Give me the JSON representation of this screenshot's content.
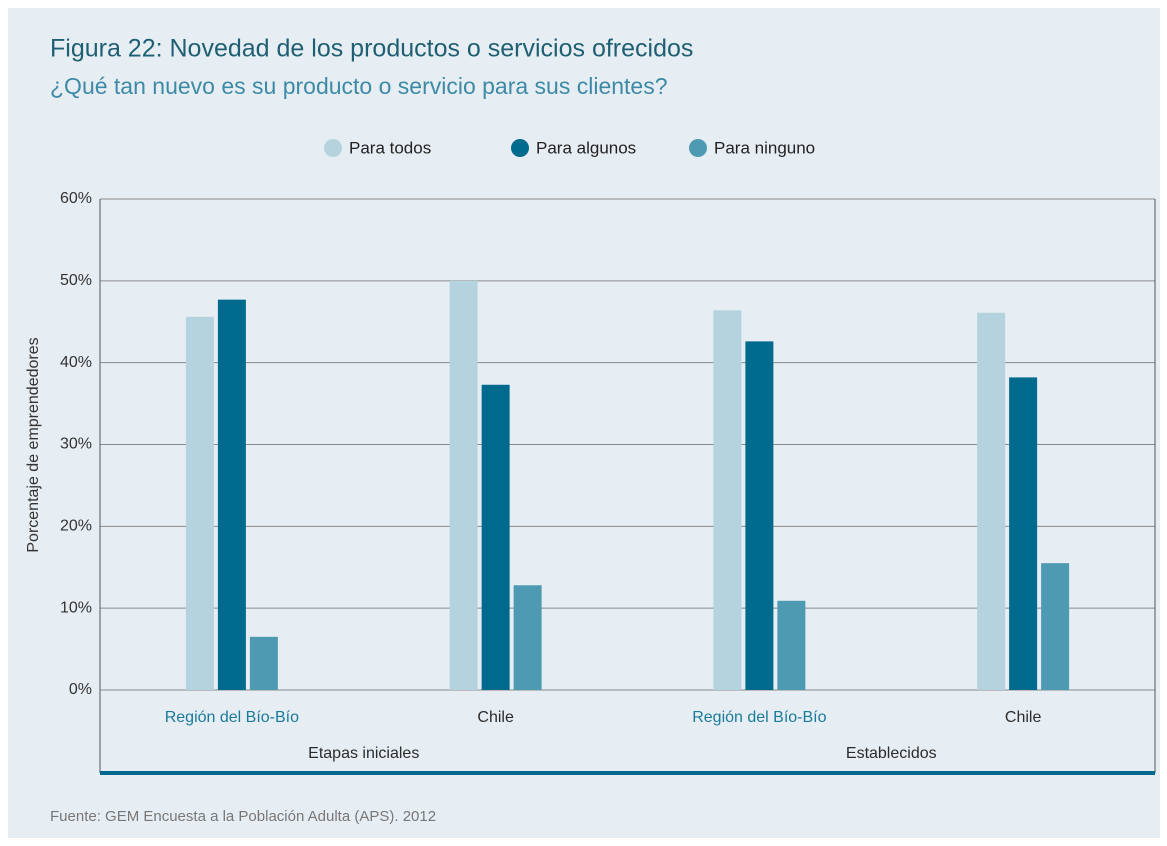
{
  "chart_data": {
    "type": "bar",
    "title": "Figura 22: Novedad de los productos o servicios ofrecidos",
    "subtitle": "¿Qué tan nuevo es su producto o servicio para sus clientes?",
    "y_label": "Porcentaje de emprendedores",
    "source": "Fuente: GEM Encuesta a la Población Adulta (APS). 2012",
    "categories": [
      "Región del Bío-Bío",
      "Chile",
      "Región del Bío-Bío",
      "Chile"
    ],
    "groups": [
      "Etapas iniciales",
      "Establecidos"
    ],
    "series": [
      {
        "name": "Para todos",
        "color": "#b5d3de",
        "values": [
          45.6,
          50.0,
          46.4,
          46.1
        ]
      },
      {
        "name": "Para algunos",
        "color": "#006a8e",
        "values": [
          47.7,
          37.3,
          42.6,
          38.2
        ]
      },
      {
        "name": "Para ninguno",
        "color": "#4e9ab3",
        "values": [
          6.5,
          12.8,
          10.9,
          15.5
        ]
      }
    ],
    "ylim": [
      0,
      60
    ],
    "yticks": [
      {
        "value": 0,
        "label": "0%"
      },
      {
        "value": 10,
        "label": "10%"
      },
      {
        "value": 20,
        "label": "20%"
      },
      {
        "value": 30,
        "label": "30%"
      },
      {
        "value": 40,
        "label": "40%"
      },
      {
        "value": 50,
        "label": "50%"
      },
      {
        "value": 60,
        "label": "60%"
      }
    ],
    "grid": true
  }
}
